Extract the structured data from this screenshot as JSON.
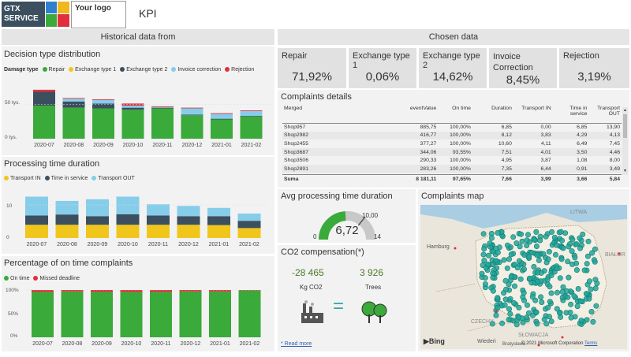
{
  "header": {
    "logo_text_1": "GTX",
    "logo_text_2": "SERVICE",
    "your_logo": "Your logo",
    "title": "KPI"
  },
  "left": {
    "historical_title": "Historical data from",
    "decision": {
      "title": "Decision type distribution",
      "legend_title": "Damage type",
      "legend": [
        "Repair",
        "Exchange type 1",
        "Exchange type 2",
        "Invoice correction",
        "Rejection"
      ],
      "colors": [
        "#3aaa3a",
        "#f0c61c",
        "#3b4f5f",
        "#86cdea",
        "#e0303c"
      ],
      "y_ticks": [
        "50 tys.",
        "0 tys."
      ]
    },
    "processing": {
      "title": "Processing time duration",
      "legend": [
        "Transport IN",
        "Time in service",
        "Transport OUT"
      ],
      "colors": [
        "#f0c61c",
        "#3b4f5f",
        "#86cdea"
      ],
      "y_ticks": [
        "10",
        "0"
      ]
    },
    "ontime": {
      "title": "Percentage of on time complaints",
      "legend": [
        "On time",
        "Missed deadline"
      ],
      "colors": [
        "#3aaa3a",
        "#e0303c"
      ],
      "y_ticks": [
        "100%",
        "50%",
        "0%"
      ]
    }
  },
  "chart_data": [
    {
      "type": "bar",
      "title": "Decision type distribution",
      "stacked": true,
      "categories": [
        "2020-07",
        "2020-08",
        "2020-09",
        "2020-10",
        "2020-11",
        "2020-12",
        "2021-01",
        "2021-02"
      ],
      "ylim": [
        0,
        80
      ],
      "series": [
        {
          "name": "Repair",
          "values": [
            48,
            45,
            44,
            42,
            44,
            34,
            28,
            32
          ]
        },
        {
          "name": "Exchange type 1",
          "values": [
            0,
            0,
            0,
            0,
            0,
            0,
            0,
            0
          ]
        },
        {
          "name": "Exchange type 2",
          "values": [
            20,
            9,
            7,
            3,
            1,
            1,
            1,
            1
          ]
        },
        {
          "name": "Invoice correction",
          "values": [
            0,
            4,
            5,
            3,
            1,
            9,
            7,
            7
          ]
        },
        {
          "name": "Rejection",
          "values": [
            3,
            1,
            1,
            3,
            1,
            1,
            1,
            1
          ]
        }
      ]
    },
    {
      "type": "bar",
      "title": "Processing time duration",
      "stacked": true,
      "categories": [
        "2020-07",
        "2020-08",
        "2020-09",
        "2020-10",
        "2020-11",
        "2020-12",
        "2021-01",
        "2021-02"
      ],
      "ylim": [
        0,
        15
      ],
      "series": [
        {
          "name": "Transport IN",
          "values": [
            4.0,
            4.0,
            4.0,
            4.0,
            4.0,
            4.0,
            3.9,
            3.0
          ]
        },
        {
          "name": "Time in service",
          "values": [
            2.8,
            3.1,
            2.6,
            3.2,
            2.8,
            2.6,
            2.7,
            2.2
          ]
        },
        {
          "name": "Transport OUT",
          "values": [
            5.7,
            4.1,
            5.1,
            5.3,
            3.4,
            3.1,
            2.5,
            2.2
          ]
        }
      ]
    },
    {
      "type": "bar",
      "title": "Percentage of on time complaints",
      "stacked": true,
      "categories": [
        "2020-07",
        "2020-08",
        "2020-09",
        "2020-10",
        "2020-11",
        "2020-12",
        "2021-01",
        "2021-02"
      ],
      "ylim": [
        0,
        100
      ],
      "series": [
        {
          "name": "On time",
          "values": [
            96,
            97,
            96,
            96,
            96,
            97,
            97,
            99
          ]
        },
        {
          "name": "Missed deadline",
          "values": [
            4,
            3,
            4,
            4,
            4,
            3,
            3,
            1
          ]
        }
      ]
    }
  ],
  "chosen": {
    "title": "Chosen data",
    "kpis": [
      {
        "label": "Repair",
        "value": "71,92%"
      },
      {
        "label": "Exchange type 1",
        "value": "0,06%"
      },
      {
        "label": "Exchange type 2",
        "value": "14,62%"
      },
      {
        "label": "Invoice Correction",
        "value": "8,45%"
      },
      {
        "label": "Rejection",
        "value": "3,19%"
      }
    ]
  },
  "complaints": {
    "title": "Complaints details",
    "headers": [
      "Merged",
      "eventValue",
      "On time",
      "Duration",
      "Transport IN",
      "Time in service",
      "Transport OUT"
    ],
    "rows": [
      [
        "Shop957",
        "885,75",
        "100,00%",
        "6,85",
        "0,00",
        "6,85",
        "13,90"
      ],
      [
        "Shop2982",
        "416,77",
        "100,00%",
        "8,12",
        "3,83",
        "4,29",
        "4,13"
      ],
      [
        "Shop2455",
        "377,27",
        "100,00%",
        "10,60",
        "4,11",
        "6,49",
        "7,45"
      ],
      [
        "Shop3687",
        "344,06",
        "93,55%",
        "7,51",
        "4,01",
        "3,50",
        "4,46"
      ],
      [
        "Shop3506",
        "290,33",
        "100,00%",
        "4,95",
        "3,87",
        "1,08",
        "8,00"
      ],
      [
        "Shop2891",
        "283,26",
        "100,00%",
        "7,35",
        "6,44",
        "0,91",
        "3,49"
      ]
    ],
    "total": [
      "Suma",
      "8 181,11",
      "97,65%",
      "7,66",
      "3,99",
      "3,66",
      "5,84"
    ]
  },
  "avg": {
    "title": "Avg processing time duration",
    "value": "6,72",
    "min": "0",
    "max": "14",
    "target": "10,00",
    "fraction": 0.48
  },
  "co2": {
    "title": "CO2 compensation(*)",
    "kg_value": "-28 465",
    "kg_label": "Kg CO2",
    "trees_value": "3 926",
    "trees_label": "Trees",
    "read_more": "* Read more"
  },
  "map": {
    "title": "Complaints map",
    "labels": [
      "LITWA",
      "Hamburg",
      "BIAŁOR",
      "CZECHY",
      "SŁOWACJA",
      "Wiedeń",
      "Bratysława"
    ],
    "bing": "Bing",
    "copyright": "© 2021 Microsoft Corporation",
    "terms": "Terms"
  }
}
